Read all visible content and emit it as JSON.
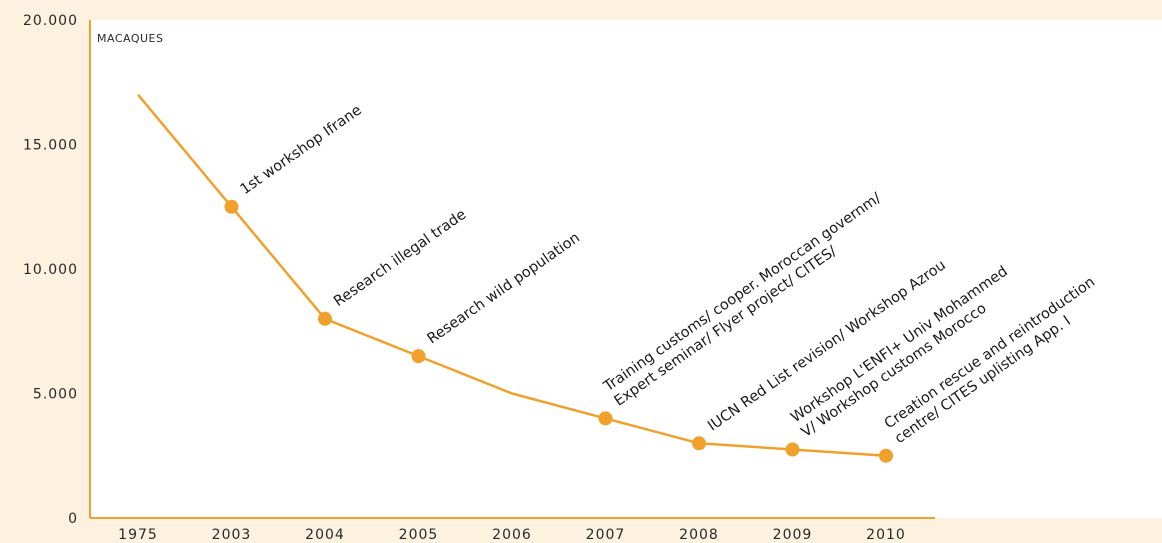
{
  "chart_data": {
    "type": "line",
    "title": "",
    "xlabel": "",
    "ylabel": "MACAQUES",
    "categories": [
      "1975",
      "2003",
      "2004",
      "2005",
      "2006",
      "2007",
      "2008",
      "2009",
      "2010"
    ],
    "y_ticks": [
      "0",
      "5.000",
      "10.000",
      "15.000",
      "20.000"
    ],
    "ylim": [
      0,
      20000
    ],
    "grid": false,
    "colors": {
      "line": "#f0a12c",
      "axis": "#f0a12c",
      "marker": "#f0a12c",
      "background": "#fdf1e0",
      "plot_background": "#ffffff"
    },
    "series": [
      {
        "values": [
          17000,
          12500,
          8000,
          6500,
          5000,
          4000,
          3000,
          2750,
          2500
        ],
        "markers": [
          false,
          true,
          true,
          true,
          false,
          true,
          true,
          true,
          true
        ]
      }
    ],
    "annotations": [
      {
        "x": "2003",
        "lines": [
          "1st workshop Ifrane"
        ]
      },
      {
        "x": "2004",
        "lines": [
          "Research illegal trade"
        ]
      },
      {
        "x": "2005",
        "lines": [
          "Research wild population"
        ]
      },
      {
        "x": "2007",
        "lines": [
          "Training customs/ cooper. Moroccan governm/",
          "Expert seminar/ Flyer project/ CITES/"
        ]
      },
      {
        "x": "2008",
        "lines": [
          "IUCN Red List revision/ Workshop Azrou"
        ]
      },
      {
        "x": "2009",
        "lines": [
          "Workshop L'ENFI+ Univ Mohammed",
          "V/ Workshop customs Morocco"
        ]
      },
      {
        "x": "2010",
        "lines": [
          "Creation rescue and reintroduction",
          "centre/ CITES uplisting App. I"
        ]
      }
    ]
  }
}
